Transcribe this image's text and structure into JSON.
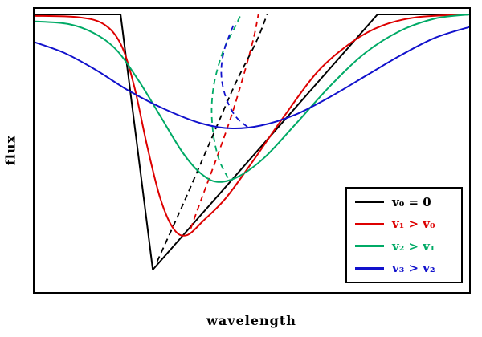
{
  "chart_data": {
    "type": "line",
    "title": "",
    "xlabel": "wavelength",
    "ylabel": "flux",
    "x_range": [
      0,
      1
    ],
    "y_range": [
      0,
      1.02
    ],
    "grid": false,
    "legend": {
      "position": "lower-right",
      "border": true
    },
    "series": [
      {
        "name": "v0",
        "label": "v₀ = 0",
        "color": "#000000",
        "smooth": false,
        "profile": {
          "style": "solid",
          "x": [
            0,
            0.199,
            0.273,
            0.788,
            1.0
          ],
          "flux": [
            1.0,
            1.0,
            0.07,
            1.0,
            1.0
          ]
        },
        "bisector": {
          "style": "dashed",
          "x": [
            0.283,
            0.34,
            0.4,
            0.46,
            0.51,
            0.535
          ],
          "flux": [
            0.1,
            0.3,
            0.52,
            0.74,
            0.9,
            1.0
          ]
        }
      },
      {
        "name": "v1",
        "label": "v₁ > v₀",
        "color": "#dd0000",
        "smooth": true,
        "profile": {
          "style": "solid",
          "x": [
            0,
            0.1,
            0.16,
            0.2,
            0.23,
            0.26,
            0.29,
            0.32,
            0.35,
            0.39,
            0.44,
            0.5,
            0.57,
            0.65,
            0.73,
            0.8,
            0.88,
            1.0
          ],
          "flux": [
            0.995,
            0.99,
            0.965,
            0.89,
            0.74,
            0.52,
            0.33,
            0.22,
            0.195,
            0.25,
            0.33,
            0.46,
            0.62,
            0.79,
            0.9,
            0.96,
            0.99,
            1.0
          ]
        },
        "bisector": {
          "style": "dashed",
          "x": [
            0.36,
            0.385,
            0.42,
            0.455,
            0.485,
            0.505,
            0.515
          ],
          "flux": [
            0.22,
            0.33,
            0.48,
            0.64,
            0.8,
            0.92,
            1.0
          ]
        }
      },
      {
        "name": "v2",
        "label": "v₂ > v₁",
        "color": "#00aa66",
        "smooth": true,
        "profile": {
          "style": "solid",
          "x": [
            0,
            0.08,
            0.14,
            0.19,
            0.24,
            0.29,
            0.34,
            0.38,
            0.42,
            0.47,
            0.53,
            0.6,
            0.68,
            0.76,
            0.84,
            0.92,
            1.0
          ],
          "flux": [
            0.975,
            0.965,
            0.93,
            0.87,
            0.76,
            0.63,
            0.5,
            0.425,
            0.39,
            0.41,
            0.48,
            0.6,
            0.74,
            0.86,
            0.94,
            0.985,
            1.0
          ]
        },
        "bisector": {
          "style": "dashed",
          "x": [
            0.445,
            0.425,
            0.412,
            0.408,
            0.415,
            0.435,
            0.46,
            0.475
          ],
          "flux": [
            0.405,
            0.47,
            0.56,
            0.66,
            0.76,
            0.87,
            0.95,
            1.0
          ]
        }
      },
      {
        "name": "v3",
        "label": "v₃ > v₂",
        "color": "#1111cc",
        "smooth": true,
        "profile": {
          "style": "solid",
          "x": [
            0,
            0.07,
            0.14,
            0.22,
            0.3,
            0.38,
            0.45,
            0.52,
            0.6,
            0.68,
            0.76,
            0.84,
            0.92,
            1.0
          ],
          "flux": [
            0.9,
            0.86,
            0.8,
            0.72,
            0.655,
            0.605,
            0.585,
            0.595,
            0.635,
            0.7,
            0.775,
            0.85,
            0.915,
            0.955
          ]
        },
        "bisector": {
          "style": "dashed",
          "x": [
            0.49,
            0.462,
            0.44,
            0.43,
            0.435,
            0.45,
            0.462
          ],
          "flux": [
            0.59,
            0.63,
            0.7,
            0.78,
            0.86,
            0.93,
            0.975
          ]
        }
      }
    ]
  }
}
